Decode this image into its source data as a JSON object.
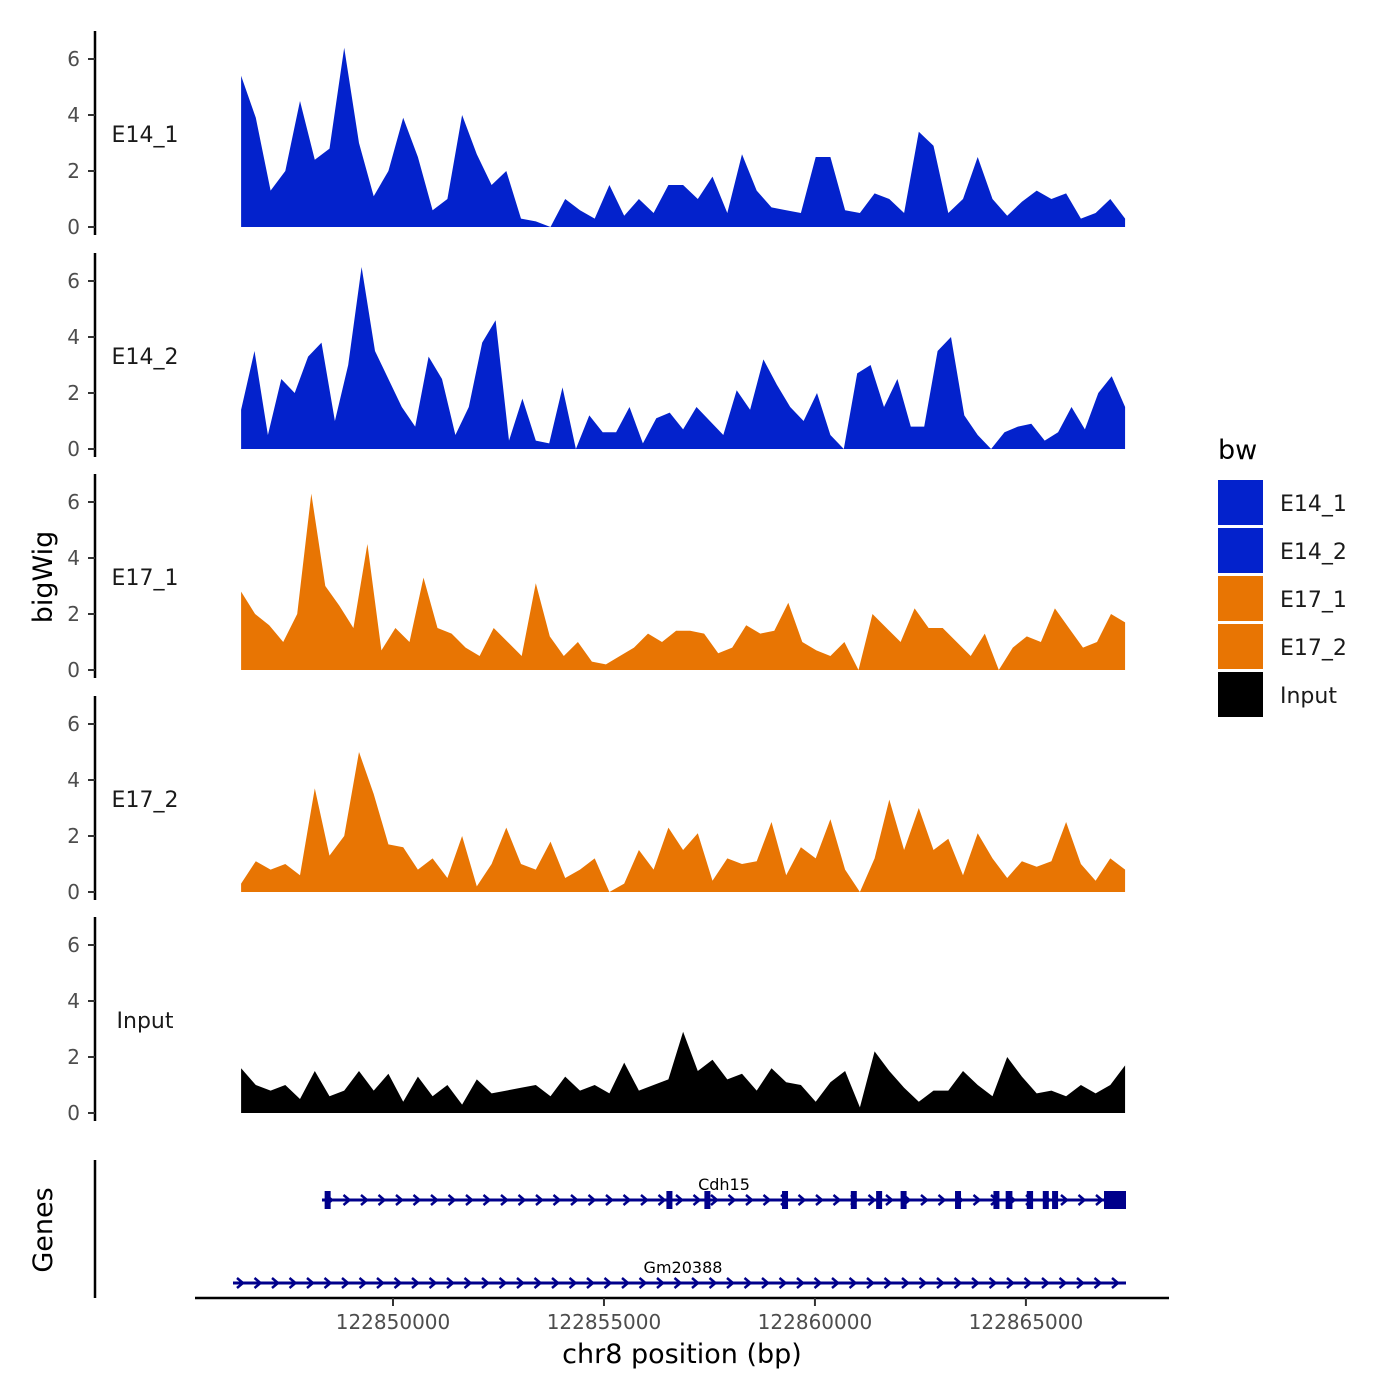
{
  "chart_data": {
    "type": "area",
    "xlabel": "chr8 position (bp)",
    "ylabel": "bigWig",
    "gene_panel_label": "Genes",
    "x_range": [
      122844700,
      122868000
    ],
    "x_ticks": [
      122850000,
      122855000,
      122860000,
      122865000
    ],
    "x_tick_labels": [
      "122850000",
      "122855000",
      "122860000",
      "122865000"
    ],
    "signal_x_range": [
      122846400,
      122867350
    ],
    "ylim": [
      0,
      7
    ],
    "y_ticks": [
      0,
      2,
      4,
      6
    ],
    "y_tick_labels": [
      "0",
      "2",
      "4",
      "6"
    ],
    "legend": {
      "title": "bw",
      "position": "right",
      "entries": [
        {
          "name": "E14_1",
          "color": "#0322CC"
        },
        {
          "name": "E14_2",
          "color": "#0322CC"
        },
        {
          "name": "E17_1",
          "color": "#E87503"
        },
        {
          "name": "E17_2",
          "color": "#E87503"
        },
        {
          "name": "Input",
          "color": "#000000"
        }
      ]
    },
    "series": [
      {
        "name": "E14_1",
        "color": "#0322CC",
        "values": [
          5.4,
          3.9,
          1.3,
          2.0,
          4.5,
          2.4,
          2.8,
          6.4,
          3.0,
          1.1,
          2.0,
          3.9,
          2.5,
          0.6,
          1.0,
          4.0,
          2.6,
          1.5,
          2.0,
          0.3,
          0.2,
          0.0,
          1.0,
          0.6,
          0.3,
          1.5,
          0.4,
          1.0,
          0.5,
          1.5,
          1.5,
          1.0,
          1.8,
          0.5,
          2.6,
          1.3,
          0.7,
          0.6,
          0.5,
          2.5,
          2.5,
          0.6,
          0.5,
          1.2,
          1.0,
          0.5,
          3.4,
          2.9,
          0.5,
          1.0,
          2.5,
          1.0,
          0.4,
          0.9,
          1.3,
          1.0,
          1.2,
          0.3,
          0.5,
          1.0,
          0.3
        ]
      },
      {
        "name": "E14_2",
        "color": "#0322CC",
        "values": [
          1.4,
          3.5,
          0.5,
          2.5,
          2.0,
          3.3,
          3.8,
          1.0,
          3.0,
          6.5,
          3.5,
          2.5,
          1.5,
          0.8,
          3.3,
          2.5,
          0.5,
          1.5,
          3.8,
          4.6,
          0.3,
          1.8,
          0.3,
          0.2,
          2.2,
          0.0,
          1.2,
          0.6,
          0.6,
          1.5,
          0.2,
          1.1,
          1.3,
          0.7,
          1.5,
          1.0,
          0.5,
          2.1,
          1.4,
          3.2,
          2.3,
          1.5,
          1.0,
          2.0,
          0.5,
          0.0,
          2.7,
          3.0,
          1.5,
          2.5,
          0.8,
          0.8,
          3.5,
          4.0,
          1.2,
          0.5,
          0.0,
          0.6,
          0.8,
          0.9,
          0.3,
          0.6,
          1.5,
          0.7,
          2.0,
          2.6,
          1.5
        ]
      },
      {
        "name": "E17_1",
        "color": "#E87503",
        "values": [
          2.8,
          2.0,
          1.6,
          1.0,
          2.0,
          6.3,
          3.0,
          2.3,
          1.5,
          4.5,
          0.7,
          1.5,
          1.0,
          3.3,
          1.5,
          1.3,
          0.8,
          0.5,
          1.5,
          1.0,
          0.5,
          3.1,
          1.2,
          0.5,
          1.0,
          0.3,
          0.2,
          0.5,
          0.8,
          1.3,
          1.0,
          1.4,
          1.4,
          1.3,
          0.6,
          0.8,
          1.6,
          1.3,
          1.4,
          2.4,
          1.0,
          0.7,
          0.5,
          1.0,
          0.0,
          2.0,
          1.5,
          1.0,
          2.2,
          1.5,
          1.5,
          1.0,
          0.5,
          1.3,
          0.0,
          0.8,
          1.2,
          1.0,
          2.2,
          1.5,
          0.8,
          1.0,
          2.0,
          1.7
        ]
      },
      {
        "name": "E17_2",
        "color": "#E87503",
        "values": [
          0.3,
          1.1,
          0.8,
          1.0,
          0.6,
          3.7,
          1.3,
          2.0,
          5.0,
          3.5,
          1.7,
          1.6,
          0.8,
          1.2,
          0.5,
          2.0,
          0.2,
          1.0,
          2.3,
          1.0,
          0.8,
          1.8,
          0.5,
          0.8,
          1.2,
          0.0,
          0.3,
          1.5,
          0.8,
          2.3,
          1.5,
          2.1,
          0.4,
          1.2,
          1.0,
          1.1,
          2.5,
          0.6,
          1.6,
          1.2,
          2.6,
          0.8,
          0.0,
          1.2,
          3.3,
          1.5,
          3.0,
          1.5,
          1.9,
          0.6,
          2.1,
          1.2,
          0.5,
          1.1,
          0.9,
          1.1,
          2.5,
          1.0,
          0.4,
          1.2,
          0.8
        ]
      },
      {
        "name": "Input",
        "color": "#000000",
        "values": [
          1.6,
          1.0,
          0.8,
          1.0,
          0.5,
          1.5,
          0.6,
          0.8,
          1.5,
          0.8,
          1.4,
          0.4,
          1.3,
          0.6,
          1.0,
          0.3,
          1.2,
          0.7,
          0.8,
          0.9,
          1.0,
          0.6,
          1.3,
          0.8,
          1.0,
          0.7,
          1.8,
          0.8,
          1.0,
          1.2,
          2.9,
          1.5,
          1.9,
          1.2,
          1.4,
          0.8,
          1.6,
          1.1,
          1.0,
          0.4,
          1.1,
          1.5,
          0.2,
          2.2,
          1.5,
          0.9,
          0.4,
          0.8,
          0.8,
          1.5,
          1.0,
          0.6,
          2.0,
          1.3,
          0.7,
          0.8,
          0.6,
          1.0,
          0.7,
          1.0,
          1.7
        ]
      }
    ],
    "genes": [
      {
        "name": "Cdh15",
        "color": "#00008B",
        "start": 122848317,
        "end": 122867372,
        "exons": [
          [
            122848380,
            122848450
          ],
          [
            122856480,
            122856600
          ],
          [
            122857380,
            122857500
          ],
          [
            122859220,
            122859320
          ],
          [
            122860850,
            122860950
          ],
          [
            122861450,
            122861540
          ],
          [
            122862030,
            122862140
          ],
          [
            122863320,
            122863460
          ],
          [
            122864230,
            122864350
          ],
          [
            122864520,
            122864680
          ],
          [
            122865020,
            122865170
          ],
          [
            122865400,
            122865500
          ],
          [
            122865620,
            122865720
          ],
          [
            122866851,
            122867372
          ]
        ]
      },
      {
        "name": "Gm20388",
        "color": "#00008B",
        "start": 122846208,
        "end": 122867372,
        "exons": []
      }
    ]
  }
}
